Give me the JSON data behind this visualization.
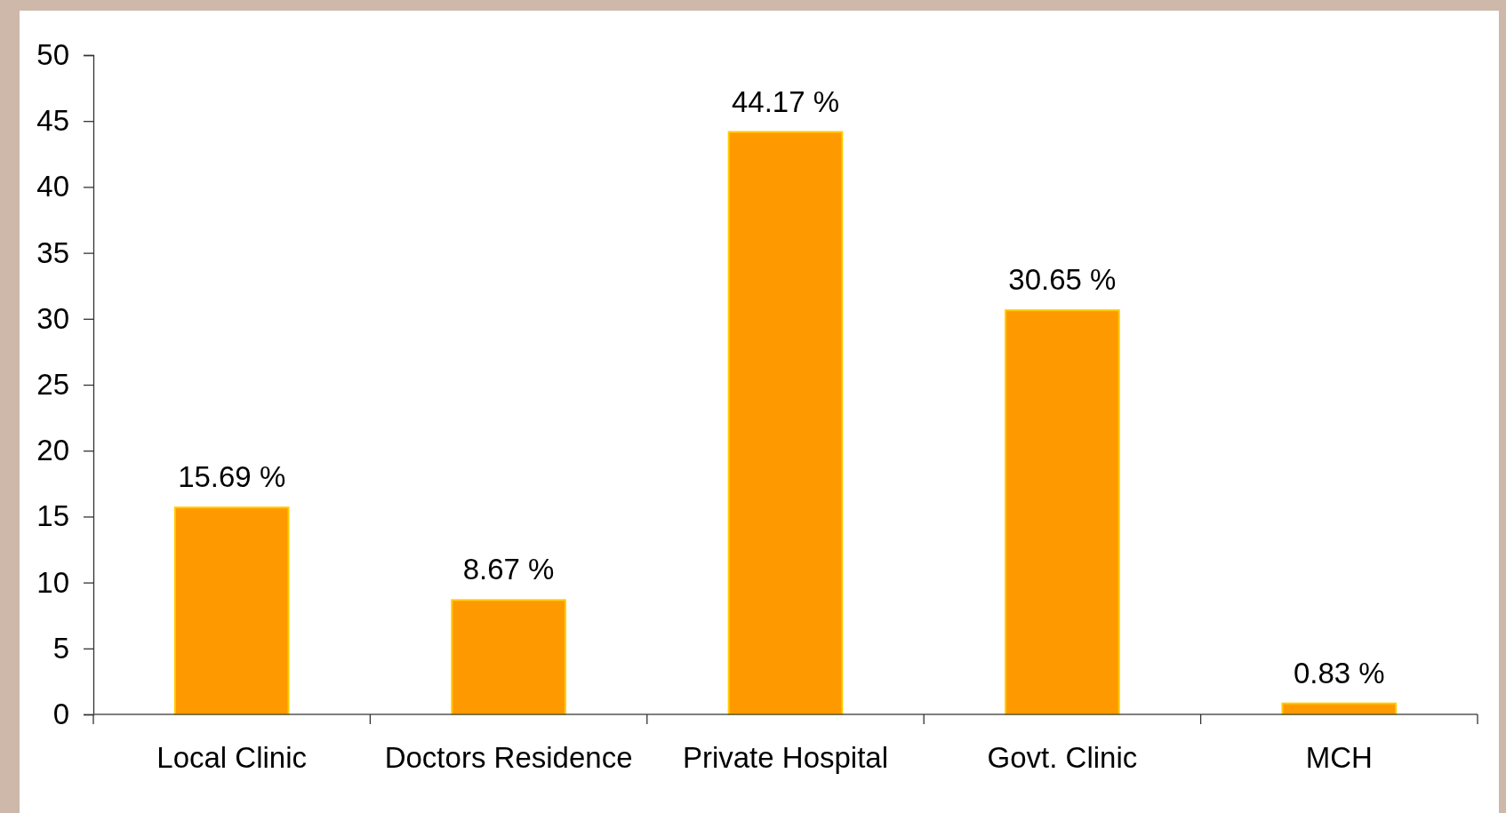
{
  "chart_data": {
    "type": "bar",
    "categories": [
      "Local Clinic",
      "Doctors Residence",
      "Private Hospital",
      "Govt. Clinic",
      "MCH"
    ],
    "values": [
      15.69,
      8.67,
      44.17,
      30.65,
      0.83
    ],
    "value_labels": [
      "15.69 %",
      "8.67 %",
      "44.17 %",
      "30.65 %",
      "0.83 %"
    ],
    "color": "#ff9900",
    "ylim": [
      0,
      50
    ],
    "yticks": [
      0,
      5,
      10,
      15,
      20,
      25,
      30,
      35,
      40,
      45,
      50
    ]
  }
}
